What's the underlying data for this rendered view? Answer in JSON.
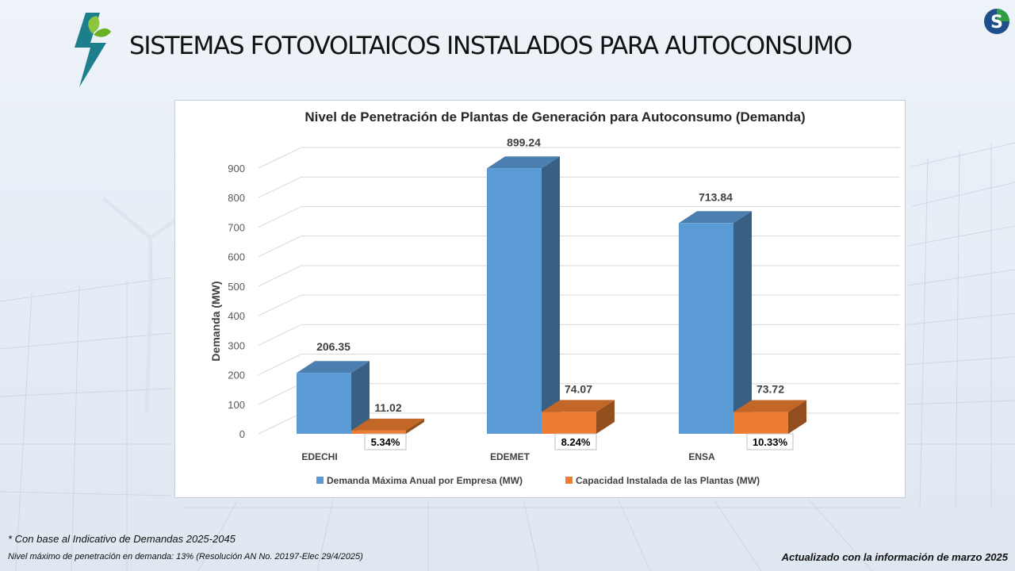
{
  "slide": {
    "title": "SISTEMAS FOTOVOLTAICOS INSTALADOS PARA AUTOCONSUMO",
    "footnote_1": "* Con base al  Indicativo de Demandas 2025-2045",
    "footnote_2": "Nivel máximo de penetración en demanda: 13% (Resolución AN No. 20197-Elec 29/4/2025)",
    "updated": "Actualizado con la información de marzo 2025",
    "logo_icon": "leaf-lightning-logo",
    "corner_logo_icon": "s-logo"
  },
  "chart_data": {
    "type": "bar",
    "title": "Nivel de Penetración de Plantas de Generación para Autoconsumo (Demanda)",
    "xlabel": "",
    "ylabel": "Demanda (MW)",
    "ylim": [
      0,
      900
    ],
    "yticks": [
      "0",
      "100",
      "200",
      "300",
      "400",
      "500",
      "600",
      "700",
      "800",
      "900"
    ],
    "grid": true,
    "legend_position": "bottom",
    "categories": [
      "EDECHI",
      "EDEMET",
      "ENSA"
    ],
    "series": [
      {
        "name": "Demanda Máxima Anual por Empresa (MW)",
        "color": "#5b9bd5",
        "values": [
          206.35,
          899.24,
          713.84
        ],
        "labels": [
          "206.35",
          "899.24",
          "713.84"
        ]
      },
      {
        "name": "Capacidad Instalada de las Plantas (MW)",
        "color": "#ed7d31",
        "values": [
          11.02,
          74.07,
          73.72
        ],
        "labels": [
          "11.02",
          "74.07",
          "73.72"
        ]
      }
    ],
    "penetration_labels": [
      "5.34%",
      "8.24%",
      "10.33%"
    ]
  }
}
